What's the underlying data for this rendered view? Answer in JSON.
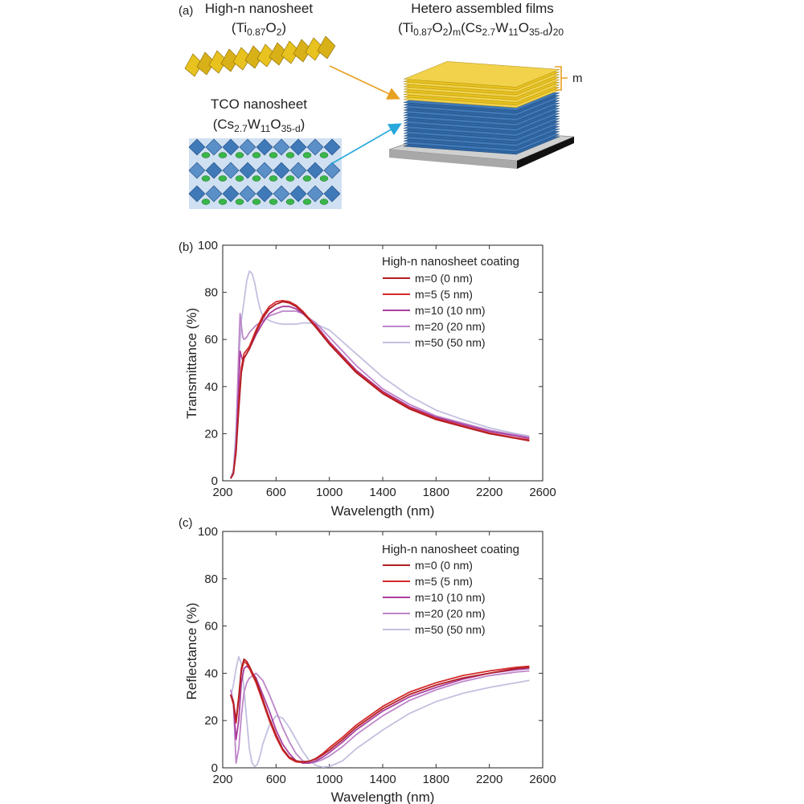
{
  "panel_a": {
    "label": "(a)",
    "highn_title": "High-n nanosheet",
    "highn_formula": {
      "pre": "(Ti",
      "sub1": "0.87",
      "mid": "O",
      "sub2": "2",
      "post": ")"
    },
    "tco_title": "TCO nanosheet",
    "tco_formula": {
      "pre": "(Cs",
      "sub1": "2.7",
      "mid1": "W",
      "sub2": "11",
      "mid2": "O",
      "sub3": "35-d",
      "post": ")"
    },
    "hetero_title": "Hetero assembled films",
    "hetero_formula": {
      "p1": "(Ti",
      "s1": "0.87",
      "p2": "O",
      "s2": "2",
      "p3": ")",
      "s3": "m",
      "p4": "(Cs",
      "s4": "2.7",
      "p5": "W",
      "s5": "11",
      "p6": "O",
      "s6": "35-d",
      "p7": ")",
      "s7": "20"
    },
    "m_label": "m",
    "colors": {
      "highn": "#e8c21e",
      "tco": "#3f79b8",
      "arrow_top": "#e8a020",
      "arrow_bottom": "#28a8dc"
    }
  },
  "chart_data": [
    {
      "panel": "(b)",
      "type": "line",
      "xlabel": "Wavelength (nm)",
      "ylabel": "Transmittance (%)",
      "xlim": [
        200,
        2600
      ],
      "ylim": [
        0,
        100
      ],
      "xticks": [
        200,
        600,
        1000,
        1400,
        1800,
        2200,
        2600
      ],
      "yticks": [
        0,
        20,
        40,
        60,
        80,
        100
      ],
      "legend_title": "High-n nanosheet coating",
      "legend_position": "top-right",
      "series": [
        {
          "name": "m=0 (0 nm)",
          "color": "#b21e24",
          "x": [
            260,
            280,
            300,
            320,
            340,
            360,
            400,
            450,
            500,
            550,
            600,
            650,
            700,
            750,
            800,
            900,
            1000,
            1200,
            1400,
            1600,
            1800,
            2000,
            2200,
            2400,
            2500
          ],
          "y": [
            1,
            3,
            12,
            30,
            46,
            52,
            56,
            63,
            69,
            73,
            75,
            76,
            75.5,
            74,
            71.5,
            65,
            58,
            46,
            37,
            30.5,
            26,
            23,
            20,
            18,
            17
          ]
        },
        {
          "name": "m=5 (5 nm)",
          "color": "#d42a2a",
          "x": [
            260,
            280,
            300,
            320,
            340,
            360,
            400,
            450,
            500,
            550,
            600,
            650,
            700,
            750,
            800,
            900,
            1000,
            1200,
            1400,
            1600,
            1800,
            2000,
            2200,
            2400,
            2500
          ],
          "y": [
            1,
            3,
            13,
            32,
            48,
            54,
            57,
            64,
            70,
            74,
            76,
            76.5,
            76,
            74.5,
            72,
            65.5,
            58.5,
            46.5,
            37.5,
            31,
            26.5,
            23.3,
            20.3,
            18.2,
            17.3
          ]
        },
        {
          "name": "m=10 (10 nm)",
          "color": "#a93e9e",
          "x": [
            260,
            280,
            300,
            320,
            330,
            340,
            350,
            360,
            380,
            400,
            450,
            500,
            550,
            600,
            650,
            700,
            750,
            800,
            900,
            1000,
            1200,
            1400,
            1600,
            1800,
            2000,
            2200,
            2400,
            2500
          ],
          "y": [
            1,
            3,
            14,
            40,
            55,
            53,
            51,
            52,
            54,
            56,
            62,
            67,
            71,
            73,
            74,
            74,
            73,
            71,
            66,
            59,
            47,
            38,
            31.5,
            27,
            24,
            21,
            19,
            18
          ]
        },
        {
          "name": "m=20 (20 nm)",
          "color": "#bd86c9",
          "x": [
            260,
            280,
            300,
            320,
            330,
            340,
            350,
            360,
            380,
            400,
            450,
            500,
            550,
            600,
            650,
            700,
            750,
            800,
            900,
            1000,
            1200,
            1400,
            1600,
            1800,
            2000,
            2200,
            2400,
            2500
          ],
          "y": [
            1,
            4,
            18,
            55,
            71,
            66,
            61,
            60,
            61,
            63,
            66,
            68,
            70,
            71,
            72,
            72,
            72,
            71,
            67,
            61,
            49,
            39,
            32.5,
            27.5,
            24.5,
            21.5,
            19.5,
            18.5
          ]
        },
        {
          "name": "m=50 (50 nm)",
          "color": "#c2c0df",
          "x": [
            260,
            280,
            300,
            320,
            340,
            360,
            380,
            400,
            420,
            440,
            460,
            480,
            500,
            550,
            600,
            650,
            700,
            750,
            800,
            850,
            900,
            1000,
            1200,
            1400,
            1600,
            1800,
            2000,
            2200,
            2400,
            2500
          ],
          "y": [
            1,
            5,
            22,
            50,
            68,
            76,
            85,
            89,
            88,
            84,
            78,
            73,
            70,
            68,
            67,
            66.5,
            66.5,
            66.5,
            67,
            67,
            66.5,
            64,
            54,
            44,
            36,
            30,
            26,
            22.5,
            20,
            19
          ]
        }
      ]
    },
    {
      "panel": "(c)",
      "type": "line",
      "xlabel": "Wavelength (nm)",
      "ylabel": "Reflectance (%)",
      "xlim": [
        200,
        2600
      ],
      "ylim": [
        0,
        100
      ],
      "xticks": [
        200,
        600,
        1000,
        1400,
        1800,
        2200,
        2600
      ],
      "yticks": [
        0,
        20,
        40,
        60,
        80,
        100
      ],
      "legend_title": "High-n nanosheet coating",
      "legend_position": "top-right",
      "series": [
        {
          "name": "m=0 (0 nm)",
          "color": "#b21e24",
          "x": [
            260,
            280,
            300,
            320,
            340,
            360,
            380,
            400,
            450,
            500,
            550,
            600,
            650,
            700,
            750,
            800,
            850,
            900,
            950,
            1000,
            1100,
            1200,
            1400,
            1600,
            1800,
            2000,
            2200,
            2400,
            2500
          ],
          "y": [
            31,
            28,
            20,
            30,
            42,
            46,
            45,
            43,
            37,
            29,
            21,
            14,
            8,
            4.5,
            3,
            2.5,
            2.8,
            3.8,
            5.5,
            7.5,
            12,
            17,
            25,
            31,
            35,
            38,
            40,
            42,
            42.5
          ]
        },
        {
          "name": "m=5 (5 nm)",
          "color": "#d42a2a",
          "x": [
            260,
            280,
            300,
            320,
            340,
            360,
            380,
            400,
            450,
            500,
            550,
            600,
            650,
            700,
            750,
            800,
            850,
            900,
            950,
            1000,
            1100,
            1200,
            1400,
            1600,
            1800,
            2000,
            2200,
            2400,
            2500
          ],
          "y": [
            31,
            27,
            19,
            29,
            41,
            45,
            44,
            42,
            36,
            28,
            20,
            13,
            7.5,
            4,
            2.5,
            2.3,
            2.8,
            4,
            6,
            8.5,
            13,
            18,
            26,
            32,
            36,
            39,
            41,
            42.5,
            43
          ]
        },
        {
          "name": "m=10 (10 nm)",
          "color": "#a93e9e",
          "x": [
            260,
            280,
            300,
            320,
            340,
            360,
            380,
            400,
            450,
            500,
            550,
            600,
            650,
            700,
            750,
            800,
            850,
            900,
            950,
            1000,
            1100,
            1200,
            1400,
            1600,
            1800,
            2000,
            2200,
            2400,
            2500
          ],
          "y": [
            31,
            27,
            12,
            20,
            36,
            42,
            43,
            42,
            38,
            31,
            24,
            16,
            10,
            6,
            3,
            2,
            2,
            3,
            4.5,
            6.5,
            11,
            16,
            24,
            30,
            34,
            37.5,
            40,
            41.5,
            42
          ]
        },
        {
          "name": "m=20 (20 nm)",
          "color": "#bd86c9",
          "x": [
            260,
            280,
            300,
            320,
            340,
            360,
            380,
            400,
            450,
            500,
            550,
            600,
            650,
            700,
            750,
            800,
            850,
            900,
            950,
            1000,
            1100,
            1200,
            1400,
            1600,
            1800,
            2000,
            2200,
            2400,
            2500
          ],
          "y": [
            33,
            28,
            2,
            8,
            22,
            32,
            36,
            38,
            40,
            37,
            31,
            24,
            17,
            11,
            6,
            3,
            2,
            2.5,
            3.5,
            5,
            9,
            14,
            22,
            28.5,
            33,
            36.5,
            39,
            40.5,
            41
          ]
        },
        {
          "name": "m=50 (50 nm)",
          "color": "#c2c0df",
          "x": [
            260,
            280,
            300,
            320,
            340,
            360,
            380,
            400,
            420,
            440,
            460,
            480,
            500,
            550,
            600,
            650,
            700,
            750,
            800,
            850,
            900,
            950,
            1000,
            1100,
            1200,
            1400,
            1600,
            1800,
            2000,
            2200,
            2400,
            2500
          ],
          "y": [
            30,
            35,
            42,
            47,
            44,
            33,
            20,
            8,
            2,
            0.5,
            1.5,
            5,
            10,
            18,
            22,
            21,
            17,
            12,
            7,
            3,
            1,
            0.3,
            0.5,
            3,
            8,
            16,
            23,
            28,
            31.5,
            34,
            36,
            37
          ]
        }
      ]
    }
  ]
}
